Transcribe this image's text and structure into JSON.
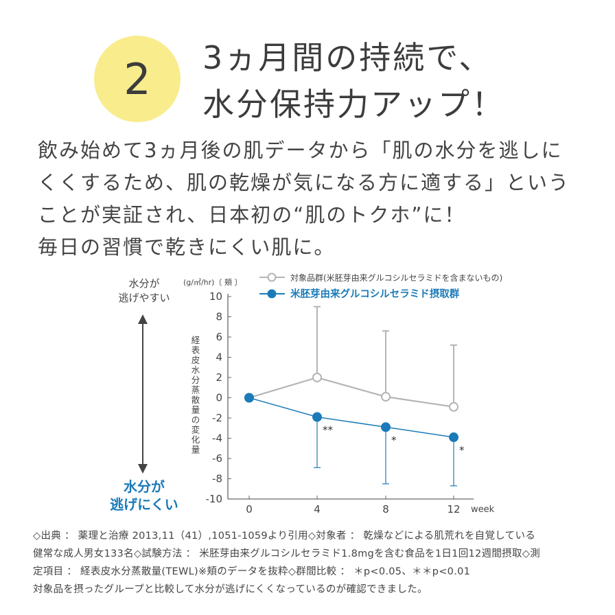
{
  "badge": {
    "number": "2"
  },
  "headline": {
    "lines": [
      "3ヵ月間の持続で、",
      "水分保持力アップ！"
    ]
  },
  "body": {
    "lines": [
      "飲み始めて3ヵ月後の肌データから「肌の水分を逃しに",
      "くくするため、肌の乾燥が気になる方に適する」という",
      "ことが実証され、日本初の“肌のトクホ”に！",
      "毎日の習慣で乾きにくい肌に。"
    ]
  },
  "side_labels": {
    "top": [
      "水分が",
      "逃げやすい"
    ],
    "bottom": [
      "水分が",
      "逃げにくい"
    ]
  },
  "chart_data": {
    "type": "line",
    "unit_label": "(g/㎡/hr)〔 頬 〕",
    "ylabel": "経表皮水分蒸散量の変化量",
    "xlabel": "week",
    "x": [
      0,
      4,
      8,
      12
    ],
    "ylim": [
      -10,
      10
    ],
    "yticks": [
      10,
      8,
      6,
      4,
      2,
      0,
      -2,
      -4,
      -6,
      -8,
      -10
    ],
    "series": [
      {
        "name": "対象品群(米胚芽由来グルコシルセラミドを含まないもの)",
        "color": "#b4b4b4",
        "values": [
          0,
          2.0,
          0.1,
          -0.9
        ],
        "error_upper": [
          0,
          9.0,
          6.6,
          5.2
        ],
        "marker": "open-circle"
      },
      {
        "name": "米胚芽由来グルコシルセラミド摂取群",
        "color": "#1a7bb8",
        "values": [
          0,
          -1.9,
          -2.9,
          -3.9
        ],
        "error_lower": [
          0,
          -6.9,
          -8.5,
          -8.7
        ],
        "marker": "filled-circle"
      }
    ],
    "annotations": [
      {
        "x": 4,
        "text": "**"
      },
      {
        "x": 8,
        "text": "*"
      },
      {
        "x": 12,
        "text": "*"
      }
    ]
  },
  "footnote": {
    "lines": [
      "◇出典 ： 薬理と治療 2013,11（41）,1051-1059より引用◇対象者 ： 乾燥などによる肌荒れを自覚している",
      "健常な成人男女133名◇試験方法 ： 米胚芽由来グルコシルセラミド1.8mgを含む食品を1日1回12週間摂取◇測",
      "定項目 ： 経表皮水分蒸散量(TEWL)※頬のデータを抜粋◇群間比較 ： ＊p<0.05、＊＊p<0.01",
      "対象品を摂ったグループと比較して水分が逃げにくくなっているのが確認できました。"
    ]
  }
}
